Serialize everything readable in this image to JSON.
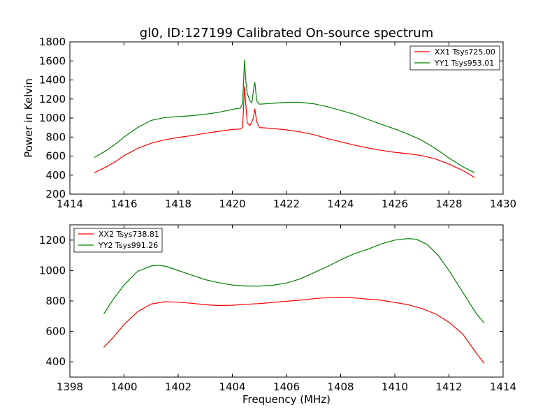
{
  "chart_data": [
    {
      "type": "line",
      "title": "gl0, ID:127199 Calibrated On-source spectrum",
      "xlabel": "",
      "ylabel": "Power in Kelvin",
      "xlim": [
        1414,
        1430
      ],
      "ylim": [
        200,
        1800
      ],
      "xticks": [
        1414,
        1416,
        1418,
        1420,
        1422,
        1424,
        1426,
        1428,
        1430
      ],
      "yticks": [
        200,
        400,
        600,
        800,
        1000,
        1200,
        1400,
        1600,
        1800
      ],
      "grid": false,
      "legend_position": "top-right",
      "series": [
        {
          "name": "XX1 Tsys725.00",
          "color": "#ff0000",
          "points": [
            [
              1414.9,
              425
            ],
            [
              1415.3,
              480
            ],
            [
              1415.7,
              545
            ],
            [
              1416.0,
              605
            ],
            [
              1416.5,
              680
            ],
            [
              1417.0,
              735
            ],
            [
              1417.5,
              770
            ],
            [
              1418.0,
              795
            ],
            [
              1418.5,
              815
            ],
            [
              1419.0,
              840
            ],
            [
              1419.5,
              860
            ],
            [
              1420.0,
              880
            ],
            [
              1420.3,
              885
            ],
            [
              1420.38,
              900
            ],
            [
              1420.45,
              1330
            ],
            [
              1420.5,
              1130
            ],
            [
              1420.55,
              950
            ],
            [
              1420.65,
              920
            ],
            [
              1420.78,
              1000
            ],
            [
              1420.83,
              1095
            ],
            [
              1420.9,
              960
            ],
            [
              1421.0,
              900
            ],
            [
              1421.5,
              890
            ],
            [
              1422.0,
              875
            ],
            [
              1422.5,
              855
            ],
            [
              1423.0,
              825
            ],
            [
              1423.5,
              785
            ],
            [
              1424.0,
              750
            ],
            [
              1424.5,
              715
            ],
            [
              1425.0,
              685
            ],
            [
              1425.5,
              660
            ],
            [
              1426.0,
              640
            ],
            [
              1426.5,
              625
            ],
            [
              1427.0,
              605
            ],
            [
              1427.5,
              570
            ],
            [
              1428.0,
              515
            ],
            [
              1428.5,
              450
            ],
            [
              1428.95,
              375
            ]
          ]
        },
        {
          "name": "YY1 Tsys953.01",
          "color": "#008000",
          "points": [
            [
              1414.9,
              585
            ],
            [
              1415.3,
              650
            ],
            [
              1415.7,
              730
            ],
            [
              1416.0,
              800
            ],
            [
              1416.5,
              900
            ],
            [
              1417.0,
              975
            ],
            [
              1417.5,
              1005
            ],
            [
              1418.0,
              1015
            ],
            [
              1418.5,
              1025
            ],
            [
              1419.0,
              1040
            ],
            [
              1419.5,
              1060
            ],
            [
              1420.0,
              1090
            ],
            [
              1420.3,
              1105
            ],
            [
              1420.38,
              1150
            ],
            [
              1420.45,
              1610
            ],
            [
              1420.5,
              1380
            ],
            [
              1420.55,
              1260
            ],
            [
              1420.65,
              1180
            ],
            [
              1420.72,
              1160
            ],
            [
              1420.8,
              1330
            ],
            [
              1420.83,
              1375
            ],
            [
              1420.9,
              1180
            ],
            [
              1421.0,
              1145
            ],
            [
              1421.5,
              1155
            ],
            [
              1422.0,
              1165
            ],
            [
              1422.5,
              1165
            ],
            [
              1423.0,
              1150
            ],
            [
              1423.5,
              1120
            ],
            [
              1424.0,
              1080
            ],
            [
              1424.5,
              1040
            ],
            [
              1425.0,
              985
            ],
            [
              1425.5,
              935
            ],
            [
              1426.0,
              885
            ],
            [
              1426.5,
              830
            ],
            [
              1427.0,
              765
            ],
            [
              1427.5,
              680
            ],
            [
              1428.0,
              580
            ],
            [
              1428.5,
              490
            ],
            [
              1428.95,
              425
            ]
          ]
        }
      ]
    },
    {
      "type": "line",
      "title": "",
      "xlabel": "Frequency (MHz)",
      "ylabel": "",
      "xlim": [
        1398,
        1414
      ],
      "ylim": [
        300,
        1300
      ],
      "xticks": [
        1398,
        1400,
        1402,
        1404,
        1406,
        1408,
        1410,
        1412,
        1414
      ],
      "yticks": [
        400,
        600,
        800,
        1000,
        1200
      ],
      "grid": false,
      "legend_position": "top-left",
      "series": [
        {
          "name": "XX2 Tsys738.81",
          "color": "#ff0000",
          "points": [
            [
              1399.25,
              495
            ],
            [
              1399.6,
              560
            ],
            [
              1400.0,
              645
            ],
            [
              1400.5,
              730
            ],
            [
              1401.0,
              780
            ],
            [
              1401.5,
              795
            ],
            [
              1402.0,
              792
            ],
            [
              1402.5,
              785
            ],
            [
              1403.0,
              775
            ],
            [
              1403.5,
              770
            ],
            [
              1404.0,
              772
            ],
            [
              1404.5,
              778
            ],
            [
              1405.0,
              783
            ],
            [
              1405.5,
              790
            ],
            [
              1406.0,
              798
            ],
            [
              1406.5,
              805
            ],
            [
              1407.0,
              815
            ],
            [
              1407.5,
              822
            ],
            [
              1408.0,
              825
            ],
            [
              1408.5,
              820
            ],
            [
              1409.0,
              812
            ],
            [
              1409.5,
              805
            ],
            [
              1410.0,
              790
            ],
            [
              1410.5,
              775
            ],
            [
              1411.0,
              750
            ],
            [
              1411.5,
              715
            ],
            [
              1412.0,
              660
            ],
            [
              1412.5,
              585
            ],
            [
              1413.0,
              460
            ],
            [
              1413.3,
              390
            ]
          ]
        },
        {
          "name": "YY2 Tsys991.26",
          "color": "#008000",
          "points": [
            [
              1399.25,
              715
            ],
            [
              1399.6,
              810
            ],
            [
              1400.0,
              905
            ],
            [
              1400.5,
              995
            ],
            [
              1401.0,
              1030
            ],
            [
              1401.3,
              1035
            ],
            [
              1401.6,
              1025
            ],
            [
              1402.0,
              1000
            ],
            [
              1402.5,
              970
            ],
            [
              1403.0,
              940
            ],
            [
              1403.5,
              920
            ],
            [
              1404.0,
              905
            ],
            [
              1404.5,
              898
            ],
            [
              1405.0,
              898
            ],
            [
              1405.5,
              903
            ],
            [
              1406.0,
              918
            ],
            [
              1406.5,
              945
            ],
            [
              1407.0,
              985
            ],
            [
              1407.5,
              1025
            ],
            [
              1408.0,
              1070
            ],
            [
              1408.5,
              1110
            ],
            [
              1409.0,
              1140
            ],
            [
              1409.5,
              1175
            ],
            [
              1410.0,
              1200
            ],
            [
              1410.5,
              1210
            ],
            [
              1410.8,
              1205
            ],
            [
              1411.2,
              1170
            ],
            [
              1411.6,
              1100
            ],
            [
              1412.0,
              1000
            ],
            [
              1412.5,
              860
            ],
            [
              1413.0,
              720
            ],
            [
              1413.3,
              655
            ]
          ]
        }
      ]
    }
  ]
}
